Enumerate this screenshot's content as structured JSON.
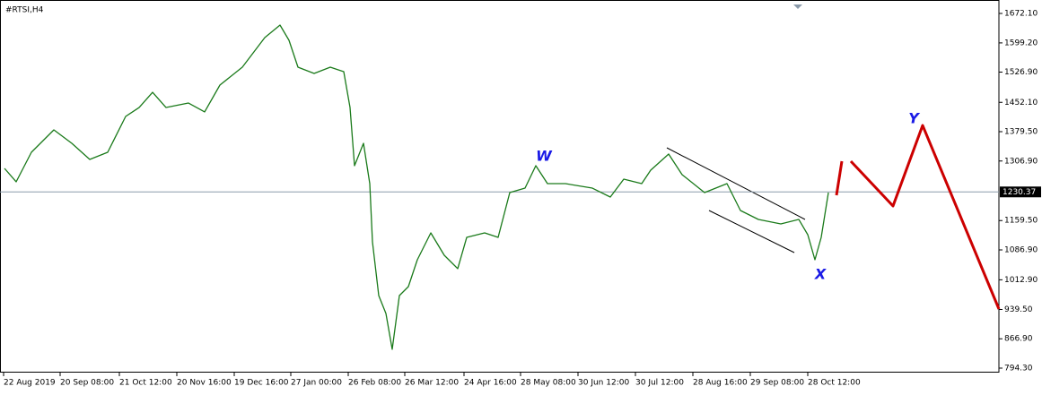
{
  "chart_data": {
    "type": "line",
    "symbol": "#RTSI,H4",
    "xlim": [
      0,
      1113
    ],
    "xticks": [
      {
        "value": 4,
        "label": "22 Aug 2019"
      },
      {
        "value": 67,
        "label": "20 Sep 08:00"
      },
      {
        "value": 133,
        "label": "21 Oct 12:00"
      },
      {
        "value": 197,
        "label": "20 Nov 16:00"
      },
      {
        "value": 261,
        "label": "19 Dec 16:00"
      },
      {
        "value": 324,
        "label": "27 Jan 00:00"
      },
      {
        "value": 388,
        "label": "26 Feb 08:00"
      },
      {
        "value": 451,
        "label": "26 Mar 12:00"
      },
      {
        "value": 517,
        "label": "24 Apr 16:00"
      },
      {
        "value": 580,
        "label": "28 May 08:00"
      },
      {
        "value": 644,
        "label": "30 Jun 12:00"
      },
      {
        "value": 708,
        "label": "30 Jul 12:00"
      },
      {
        "value": 772,
        "label": "28 Aug 16:00"
      },
      {
        "value": 836,
        "label": "29 Sep 08:00"
      },
      {
        "value": 900,
        "label": "28 Oct 12:00"
      }
    ],
    "ylim": [
      785.4,
      1694.3
    ],
    "yticks": [
      {
        "value": 1672.1,
        "label": "1672.10"
      },
      {
        "value": 1599.2,
        "label": "1599.20"
      },
      {
        "value": 1526.9,
        "label": "1526.90"
      },
      {
        "value": 1452.1,
        "label": "1452.10"
      },
      {
        "value": 1379.5,
        "label": "1379.50"
      },
      {
        "value": 1306.9,
        "label": "1306.90"
      },
      {
        "value": 1159.5,
        "label": "1159.50"
      },
      {
        "value": 1086.9,
        "label": "1086.90"
      },
      {
        "value": 1012.9,
        "label": "1012.90"
      },
      {
        "value": 939.5,
        "label": "939.50"
      },
      {
        "value": 866.9,
        "label": "866.90"
      },
      {
        "value": 794.3,
        "label": "794.30"
      }
    ],
    "current_price": {
      "value": 1230.37,
      "label": "1230.37"
    },
    "series": [
      {
        "color": "#1a7a1a",
        "x": [
          5,
          18,
          35,
          60,
          80,
          100,
          120,
          140,
          155,
          170,
          185,
          210,
          228,
          245,
          270,
          295,
          312,
          322,
          332,
          350,
          368,
          383,
          390,
          395,
          405,
          412,
          415,
          422,
          430,
          437,
          445,
          455,
          465,
          480,
          495,
          510,
          520,
          540,
          555,
          568,
          585,
          597,
          610,
          630,
          660,
          680,
          695,
          715,
          725,
          745,
          760,
          785,
          810,
          825,
          845,
          870,
          890,
          900,
          908,
          915,
          923
        ],
        "values": [
          1288.6,
          1255.4,
          1328.5,
          1383.9,
          1350.7,
          1310.8,
          1328.5,
          1417.2,
          1439.3,
          1477.0,
          1439.3,
          1450.4,
          1428.3,
          1494.8,
          1539.1,
          1612.3,
          1643.3,
          1605.6,
          1539.1,
          1523.6,
          1539.1,
          1528.0,
          1439.3,
          1295.3,
          1350.7,
          1250.9,
          1106.8,
          973.8,
          929.5,
          840.8,
          973.8,
          996.0,
          1062.5,
          1129.0,
          1073.6,
          1040.4,
          1117.9,
          1129.0,
          1117.9,
          1228.8,
          1239.8,
          1295.3,
          1250.9,
          1250.9,
          1239.8,
          1217.7,
          1262.0,
          1250.9,
          1284.2,
          1324.1,
          1273.1,
          1228.8,
          1250.9,
          1184.4,
          1162.3,
          1151.2,
          1162.3,
          1124.6,
          1062.5,
          1117.9,
          1228.8
        ]
      },
      {
        "color": "#cc0000",
        "x": [
          932,
          938,
          944,
          948,
          995,
          1028,
          1113
        ],
        "values": [
          1222.1,
          1306.3,
          null,
          1306.3,
          1195.5,
          1395.0,
          940.6
        ]
      }
    ],
    "annotations": [
      "W",
      "X",
      "Y"
    ]
  }
}
